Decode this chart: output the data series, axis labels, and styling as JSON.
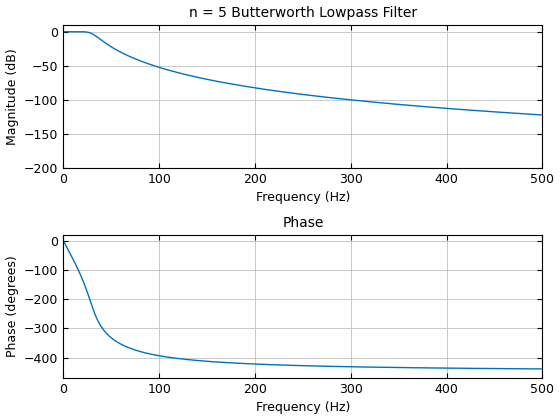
{
  "title_mag": "n = 5 Butterworth Lowpass Filter",
  "title_phase": "Phase",
  "xlabel": "Frequency (Hz)",
  "ylabel_mag": "Magnitude (dB)",
  "ylabel_phase": "Phase (degrees)",
  "filter_order": 5,
  "cutoff_hz": 30,
  "freq_max": 500,
  "mag_ylim": [
    -200,
    10
  ],
  "phase_ylim": [
    -470,
    20
  ],
  "mag_yticks": [
    0,
    -50,
    -100,
    -150,
    -200
  ],
  "phase_yticks": [
    0,
    -100,
    -200,
    -300,
    -400
  ],
  "xticks": [
    0,
    100,
    200,
    300,
    400,
    500
  ],
  "line_color": "#0072BD",
  "line_width": 1.0,
  "bg_color": "#FFFFFF",
  "grid_color": "#C0C0C0",
  "title_fontsize": 10,
  "label_fontsize": 9,
  "tick_fontsize": 9
}
